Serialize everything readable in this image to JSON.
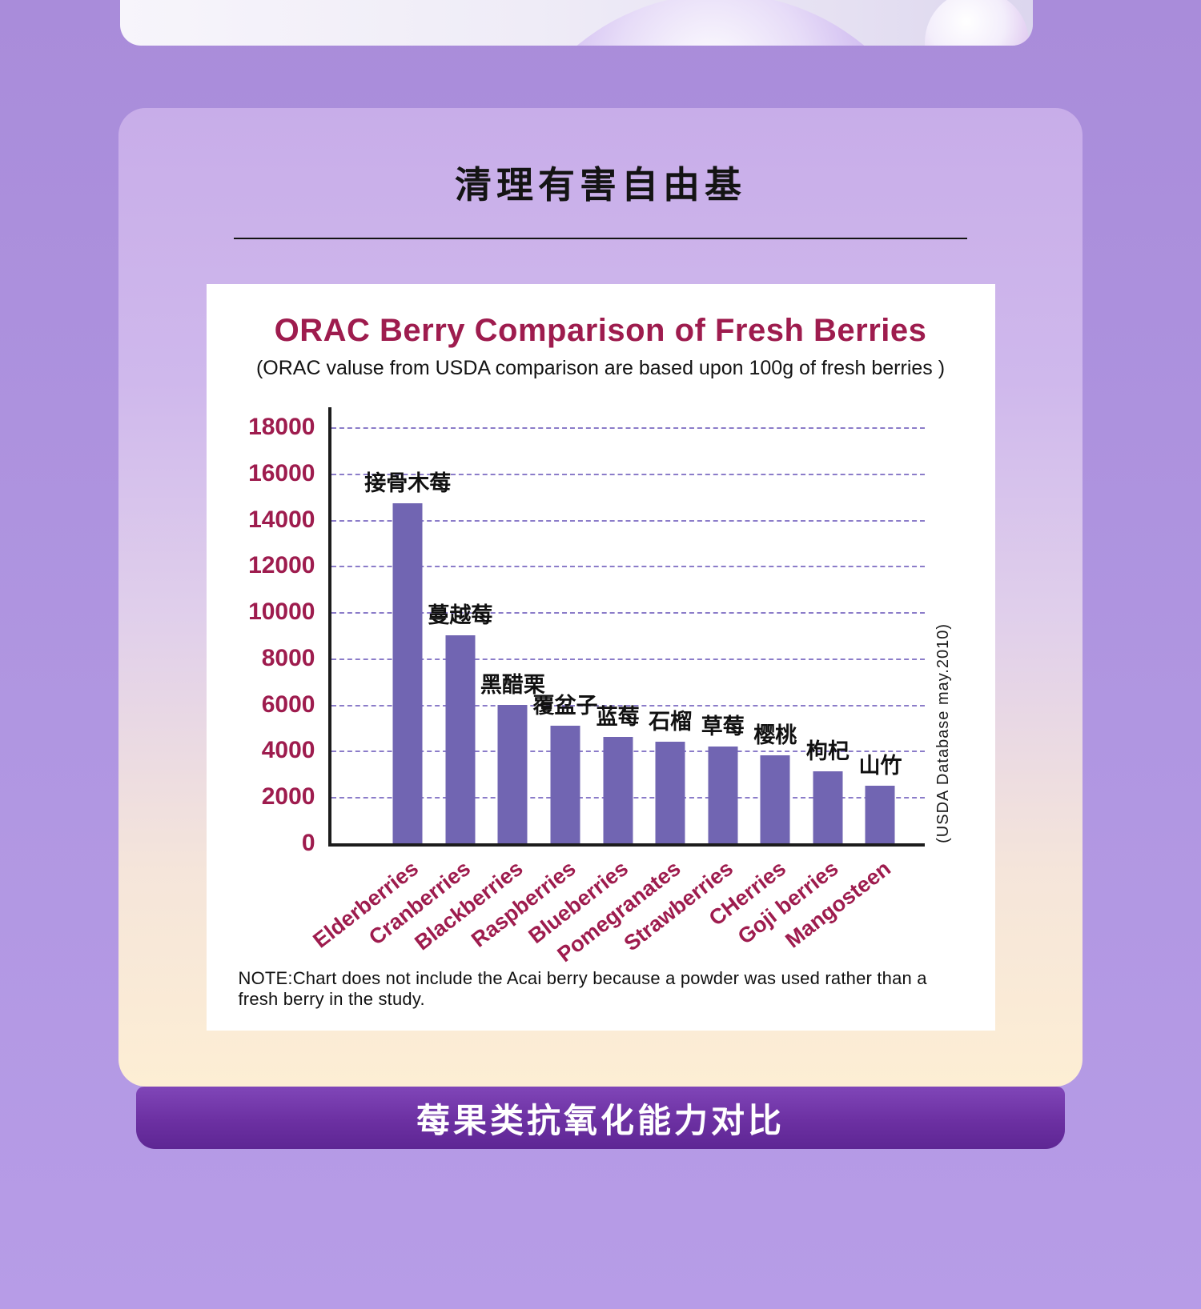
{
  "theme": {
    "outer_bg": "#ad90dd",
    "card_top": "#c8ade9",
    "card_bottom": "#fdeed4",
    "accent_maroon": "#9e1c4e",
    "bar_color": "#7165b2",
    "grid_color": "#8b7cc9",
    "banner_bg": "#6c30a2"
  },
  "section": {
    "title": "清理有害自由基",
    "banner_label": "莓果类抗氧化能力对比"
  },
  "chart_panel": {
    "title": "ORAC Berry Comparison of Fresh Berries",
    "subtitle": "(ORAC valuse from USDA comparison are based upon 100g of fresh berries )",
    "source_note": "(USDA Database may.2010)",
    "footnote": "NOTE:Chart does not include the Acai berry because a powder was used rather than a fresh berry in the study."
  },
  "chart_data": {
    "type": "bar",
    "title": "ORAC Berry Comparison of Fresh Berries",
    "subtitle": "(ORAC valuse from USDA comparison are based upon 100g of fresh berries )",
    "categories": [
      "Elderberries",
      "Cranberries",
      "Blackberries",
      "Raspberries",
      "Blueberries",
      "Pomegranates",
      "Strawberries",
      "CHerries",
      "Goji berries",
      "Mangosteen"
    ],
    "bar_labels_cn": [
      "接骨木莓",
      "蔓越莓",
      "黑醋栗",
      "覆盆子",
      "蓝莓",
      "石榴",
      "草莓",
      "樱桃",
      "枸杞",
      "山竹"
    ],
    "values": [
      14700,
      9000,
      6000,
      5100,
      4600,
      4400,
      4200,
      3800,
      3100,
      2500
    ],
    "xlabel": "",
    "ylabel": "",
    "ylim": [
      0,
      18000
    ],
    "ytick_step": 2000,
    "grid": "dashed-horizontal",
    "legend": "none",
    "bar_color": "#7165b2",
    "source_annotation": "(USDA Database may.2010)",
    "note": "NOTE:Chart does not include the Acai berry because a powder was used rather than a fresh berry in the study."
  }
}
